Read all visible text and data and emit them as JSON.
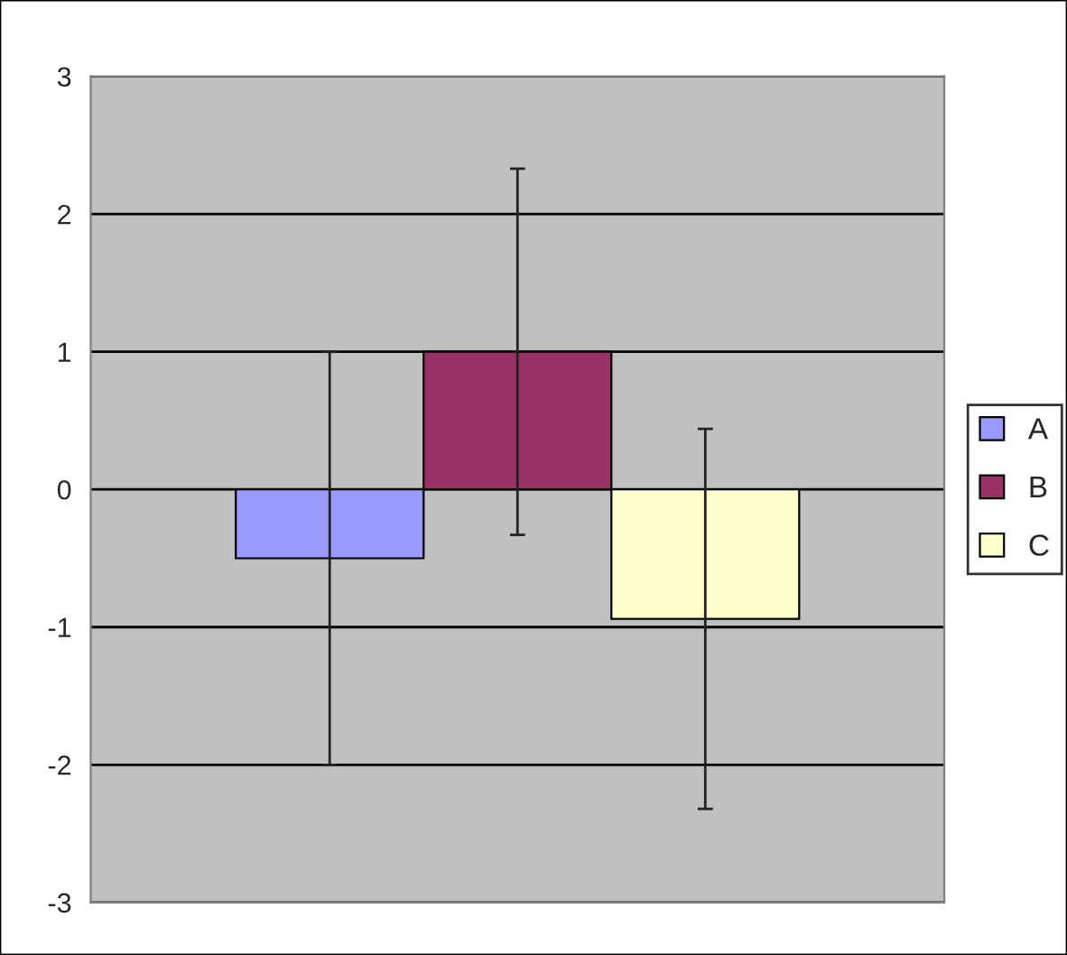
{
  "chart_data": {
    "type": "bar",
    "categories": [
      null
    ],
    "series": [
      {
        "name": "A",
        "color": "#9999ff",
        "values": [
          -0.5
        ],
        "errors": [
          1.5
        ]
      },
      {
        "name": "B",
        "color": "#993366",
        "values": [
          1.0
        ],
        "errors": [
          1.33
        ]
      },
      {
        "name": "C",
        "color": "#ffffcc",
        "values": [
          -0.94
        ],
        "errors": [
          1.38
        ]
      }
    ],
    "ylim": [
      -3,
      3
    ],
    "yticks": [
      -3,
      -2,
      -1,
      0,
      1,
      2,
      3
    ],
    "grid": "y",
    "legend": "right",
    "tick_labels": "y"
  }
}
